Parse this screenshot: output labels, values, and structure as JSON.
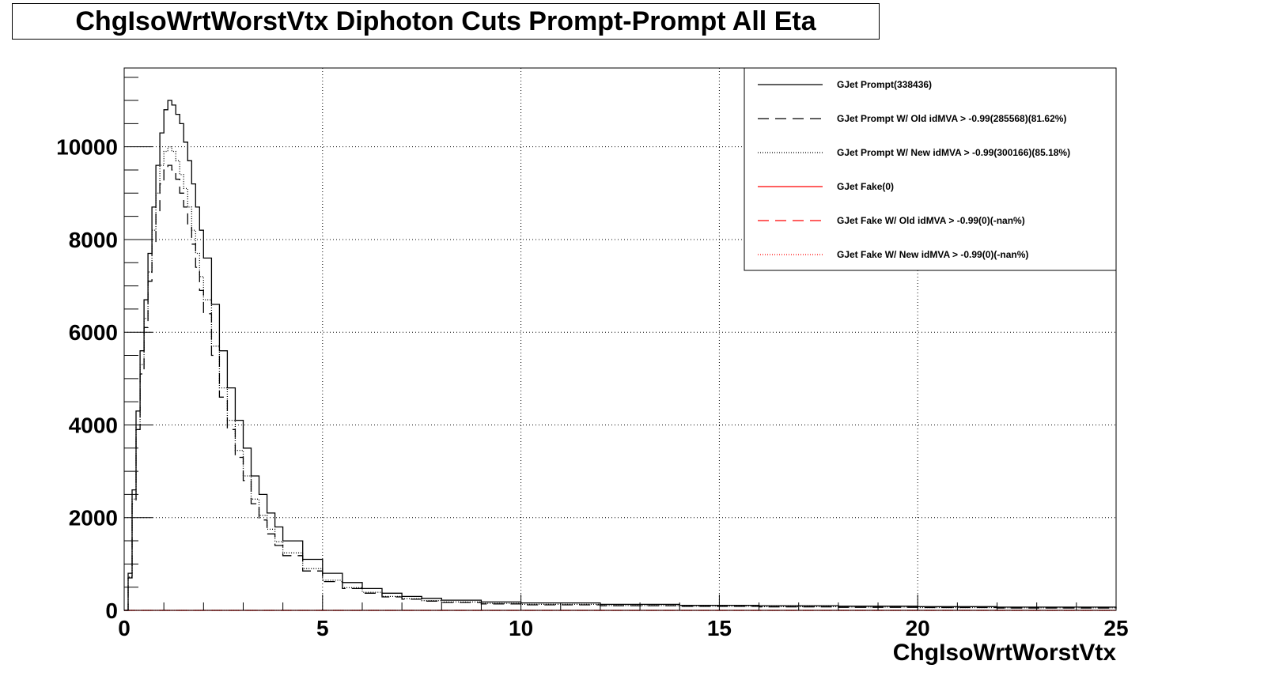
{
  "title": "ChgIsoWrtWorstVtx Diphoton Cuts Prompt-Prompt All Eta",
  "chart_data": {
    "type": "line",
    "xlabel": "ChgIsoWrtWorstVtx",
    "ylabel": "",
    "xlim": [
      0,
      25
    ],
    "ylim": [
      0,
      11700
    ],
    "x_ticks": [
      "0",
      "5",
      "10",
      "15",
      "20",
      "25"
    ],
    "y_ticks": [
      "0",
      "2000",
      "4000",
      "6000",
      "8000",
      "10000"
    ],
    "x_tick_values": [
      0,
      5,
      10,
      15,
      20,
      25
    ],
    "y_tick_values": [
      0,
      2000,
      4000,
      6000,
      8000,
      10000
    ],
    "grid": true,
    "legend_placement": "top-right",
    "legend": [
      {
        "label": "GJet Prompt(338436)",
        "color": "#000000",
        "style": "solid"
      },
      {
        "label": "GJet Prompt W/ Old idMVA > -0.99(285568)(81.62%)",
        "color": "#000000",
        "style": "dashed"
      },
      {
        "label": "GJet Prompt W/ New idMVA > -0.99(300166)(85.18%)",
        "color": "#000000",
        "style": "dotted"
      },
      {
        "label": "GJet Fake(0)",
        "color": "#ff0000",
        "style": "solid"
      },
      {
        "label": "GJet Fake W/ Old idMVA > -0.99(0)(-nan%)",
        "color": "#ff0000",
        "style": "dashed"
      },
      {
        "label": "GJet Fake W/ New idMVA > -0.99(0)(-nan%)",
        "color": "#ff0000",
        "style": "dotted"
      }
    ],
    "series": [
      {
        "name": "GJet Prompt(338436)",
        "color": "#000000",
        "style": "solid",
        "x": [
          0,
          0.1,
          0.2,
          0.3,
          0.4,
          0.5,
          0.6,
          0.7,
          0.8,
          0.9,
          1.0,
          1.1,
          1.2,
          1.3,
          1.4,
          1.5,
          1.6,
          1.7,
          1.8,
          1.9,
          2.0,
          2.2,
          2.4,
          2.6,
          2.8,
          3.0,
          3.2,
          3.4,
          3.6,
          3.8,
          4.0,
          4.5,
          5.0,
          5.5,
          6.0,
          6.5,
          7.0,
          7.5,
          8.0,
          9.0,
          10.0,
          12.0,
          14.0,
          16.0,
          18.0,
          20.0,
          22.0,
          25.0
        ],
        "values": [
          0,
          800,
          2600,
          4300,
          5600,
          6700,
          7700,
          8700,
          9600,
          10300,
          10800,
          11000,
          10900,
          10700,
          10500,
          10100,
          9700,
          9200,
          8700,
          8200,
          7600,
          6600,
          5600,
          4800,
          4100,
          3500,
          2900,
          2500,
          2100,
          1800,
          1500,
          1100,
          800,
          600,
          470,
          370,
          300,
          260,
          220,
          180,
          160,
          130,
          110,
          100,
          90,
          80,
          70,
          50
        ]
      },
      {
        "name": "GJet Prompt W/ Old idMVA > -0.99(285568)(81.62%)",
        "color": "#000000",
        "style": "dashed",
        "x": [
          0,
          0.1,
          0.2,
          0.3,
          0.4,
          0.5,
          0.6,
          0.7,
          0.8,
          0.9,
          1.0,
          1.1,
          1.2,
          1.3,
          1.4,
          1.5,
          1.6,
          1.7,
          1.8,
          1.9,
          2.0,
          2.2,
          2.4,
          2.6,
          2.8,
          3.0,
          3.2,
          3.4,
          3.6,
          3.8,
          4.0,
          4.5,
          5.0,
          5.5,
          6.0,
          6.5,
          7.0,
          7.5,
          8.0,
          9.0,
          10.0,
          12.0,
          14.0,
          16.0,
          18.0,
          20.0,
          22.0,
          25.0
        ],
        "values": [
          0,
          700,
          2300,
          3900,
          5100,
          6100,
          7100,
          7900,
          8600,
          9200,
          9500,
          9600,
          9500,
          9300,
          9000,
          8700,
          8300,
          7900,
          7400,
          6900,
          6400,
          5500,
          4600,
          3900,
          3300,
          2800,
          2300,
          1950,
          1650,
          1400,
          1180,
          850,
          620,
          470,
          370,
          290,
          240,
          200,
          170,
          140,
          120,
          100,
          85,
          75,
          65,
          60,
          50,
          40
        ]
      },
      {
        "name": "GJet Prompt W/ New idMVA > -0.99(300166)(85.18%)",
        "color": "#000000",
        "style": "dotted",
        "x": [
          0,
          0.1,
          0.2,
          0.3,
          0.4,
          0.5,
          0.6,
          0.7,
          0.8,
          0.9,
          1.0,
          1.1,
          1.2,
          1.3,
          1.4,
          1.5,
          1.6,
          1.7,
          1.8,
          1.9,
          2.0,
          2.2,
          2.4,
          2.6,
          2.8,
          3.0,
          3.2,
          3.4,
          3.6,
          3.8,
          4.0,
          4.5,
          5.0,
          5.5,
          6.0,
          6.5,
          7.0,
          7.5,
          8.0,
          9.0,
          10.0,
          12.0,
          14.0,
          16.0,
          18.0,
          20.0,
          22.0,
          25.0
        ],
        "values": [
          0,
          720,
          2400,
          4000,
          5300,
          6300,
          7300,
          8200,
          9000,
          9600,
          9900,
          10000,
          9900,
          9700,
          9400,
          9100,
          8700,
          8200,
          7700,
          7200,
          6700,
          5700,
          4800,
          4100,
          3450,
          2900,
          2400,
          2050,
          1750,
          1480,
          1240,
          900,
          650,
          490,
          390,
          300,
          250,
          210,
          180,
          150,
          130,
          105,
          90,
          80,
          70,
          60,
          55,
          45
        ]
      },
      {
        "name": "GJet Fake(0)",
        "color": "#ff0000",
        "style": "solid",
        "x": [
          0,
          25
        ],
        "values": [
          0,
          0
        ]
      },
      {
        "name": "GJet Fake W/ Old idMVA > -0.99(0)(-nan%)",
        "color": "#ff0000",
        "style": "dashed",
        "x": [
          0,
          25
        ],
        "values": [
          0,
          0
        ]
      },
      {
        "name": "GJet Fake W/ New idMVA > -0.99(0)(-nan%)",
        "color": "#ff0000",
        "style": "dotted",
        "x": [
          0,
          25
        ],
        "values": [
          0,
          0
        ]
      }
    ]
  }
}
